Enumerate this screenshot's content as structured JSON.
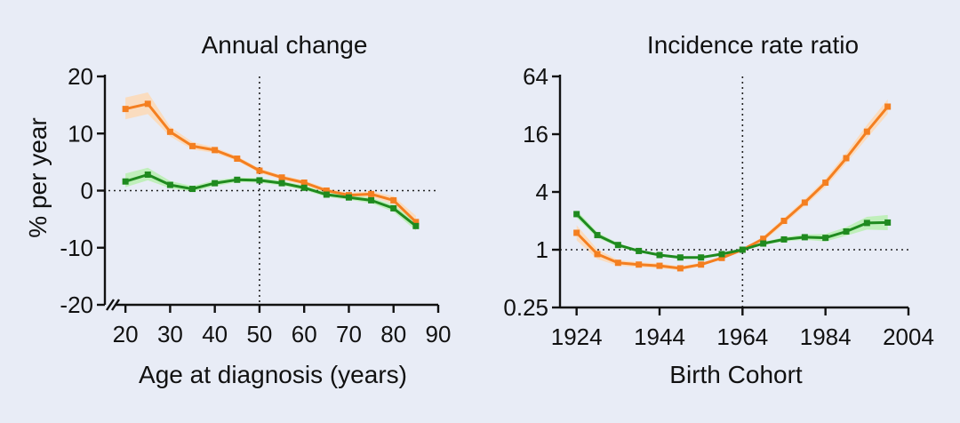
{
  "chart_data": [
    {
      "type": "line",
      "title": "Annual change",
      "xlabel": "Age at diagnosis (years)",
      "ylabel": "% per year",
      "xlim": [
        15,
        90
      ],
      "ylim": [
        -20,
        20
      ],
      "xticks": [
        "20",
        "30",
        "40",
        "50",
        "60",
        "70",
        "80",
        "90"
      ],
      "yticks": [
        "20",
        "10",
        "0",
        "-10",
        "-20"
      ],
      "axis_break_x": true,
      "reference_lines": {
        "x": 50,
        "y": 0
      },
      "x": [
        20,
        25,
        30,
        35,
        40,
        45,
        50,
        55,
        60,
        65,
        70,
        75,
        80,
        85
      ],
      "series": [
        {
          "color": "#f47f20",
          "band_color": "#fdd9b5",
          "values": [
            14.3,
            15.2,
            10.3,
            7.8,
            7.1,
            5.6,
            3.5,
            2.3,
            1.4,
            0.0,
            -0.8,
            -0.6,
            -1.7,
            -5.5
          ],
          "lower": [
            12.5,
            13.4,
            9.5,
            7.2,
            6.6,
            5.2,
            3.1,
            1.9,
            1.0,
            -0.4,
            -1.2,
            -1.1,
            -2.4,
            -6.6
          ],
          "upper": [
            16.3,
            17.2,
            11.2,
            8.5,
            7.6,
            6.0,
            3.9,
            2.7,
            1.8,
            0.4,
            -0.4,
            -0.1,
            -1.0,
            -4.4
          ]
        },
        {
          "color": "#1f8a1f",
          "band_color": "#b8f0b0",
          "values": [
            1.6,
            2.8,
            1.0,
            0.3,
            1.3,
            1.9,
            1.8,
            1.3,
            0.5,
            -0.7,
            -1.2,
            -1.7,
            -3.1,
            -6.2
          ],
          "lower": [
            0.6,
            1.8,
            0.4,
            -0.2,
            0.8,
            1.5,
            1.4,
            0.9,
            0.1,
            -1.1,
            -1.6,
            -2.2,
            -3.7,
            -7.0
          ],
          "upper": [
            3.0,
            4.0,
            1.7,
            0.8,
            1.8,
            2.3,
            2.2,
            1.7,
            0.9,
            -0.3,
            -0.8,
            -1.2,
            -2.5,
            -5.4
          ]
        }
      ]
    },
    {
      "type": "line",
      "title": "Incidence rate ratio",
      "xlabel": "Birth Cohort",
      "ylabel": "",
      "xlim": [
        1920,
        2004
      ],
      "ylim": [
        0.25,
        64
      ],
      "yscale": "log2",
      "xticks": [
        "1924",
        "1944",
        "1964",
        "1984",
        "2004"
      ],
      "yticks": [
        "64",
        "16",
        "4",
        "1",
        "0.25"
      ],
      "reference_lines": {
        "x": 1964,
        "y": 1
      },
      "x": [
        1924,
        1929,
        1934,
        1939,
        1944,
        1949,
        1954,
        1959,
        1964,
        1969,
        1974,
        1979,
        1984,
        1989,
        1994,
        1999
      ],
      "series": [
        {
          "color": "#f47f20",
          "band_color": "#fdd9b5",
          "values": [
            1.5,
            0.9,
            0.73,
            0.7,
            0.68,
            0.64,
            0.7,
            0.82,
            1.0,
            1.3,
            2.0,
            3.1,
            5.0,
            9.0,
            17.0,
            31.0
          ],
          "lower": [
            1.25,
            0.8,
            0.68,
            0.66,
            0.64,
            0.61,
            0.67,
            0.8,
            1.0,
            1.22,
            1.85,
            2.85,
            4.5,
            8.0,
            14.5,
            26.0
          ],
          "upper": [
            1.8,
            1.01,
            0.78,
            0.74,
            0.72,
            0.67,
            0.73,
            0.84,
            1.0,
            1.38,
            2.15,
            3.35,
            5.5,
            10.2,
            20.0,
            37.0
          ]
        },
        {
          "color": "#1f8a1f",
          "band_color": "#b8f0b0",
          "values": [
            2.35,
            1.42,
            1.12,
            0.97,
            0.88,
            0.83,
            0.83,
            0.9,
            1.0,
            1.16,
            1.28,
            1.35,
            1.33,
            1.55,
            1.9,
            1.92
          ],
          "lower": [
            2.15,
            1.33,
            1.07,
            0.94,
            0.86,
            0.81,
            0.81,
            0.88,
            1.0,
            1.12,
            1.22,
            1.27,
            1.22,
            1.4,
            1.62,
            1.6
          ],
          "upper": [
            2.58,
            1.52,
            1.17,
            1.0,
            0.9,
            0.85,
            0.85,
            0.92,
            1.0,
            1.2,
            1.35,
            1.44,
            1.46,
            1.72,
            2.2,
            2.3
          ]
        }
      ]
    }
  ]
}
